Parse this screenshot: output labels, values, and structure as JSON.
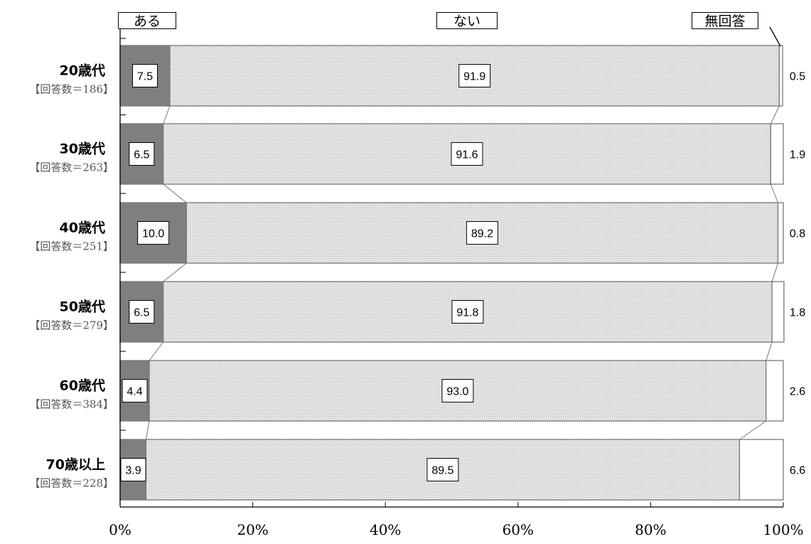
{
  "chart_data": {
    "type": "bar",
    "stacked": true,
    "orientation": "horizontal",
    "percent": true,
    "legend": [
      "ある",
      "ない",
      "無回答"
    ],
    "legend_placement": "top",
    "categories": [
      "20歳代",
      "30歳代",
      "40歳代",
      "50歳代",
      "60歳代",
      "70歳以上"
    ],
    "respondents": [
      "【回答数＝186】",
      "【回答数＝263】",
      "【回答数＝251】",
      "【回答数＝279】",
      "【回答数＝384】",
      "【回答数＝228】"
    ],
    "series": [
      {
        "name": "ある",
        "values": [
          7.5,
          6.5,
          10.0,
          6.5,
          4.4,
          3.9
        ]
      },
      {
        "name": "ない",
        "values": [
          91.9,
          91.6,
          89.2,
          91.8,
          93.0,
          89.5
        ]
      },
      {
        "name": "無回答",
        "values": [
          0.5,
          1.9,
          0.8,
          1.8,
          2.6,
          6.6
        ]
      }
    ],
    "labels": {
      "ある": [
        "7.5",
        "6.5",
        "10.0",
        "6.5",
        "4.4",
        "3.9"
      ],
      "ない": [
        "91.9",
        "91.6",
        "89.2",
        "91.8",
        "93.0",
        "89.5"
      ],
      "無回答": [
        "0.5",
        "1.9",
        "0.8",
        "1.8",
        "2.6",
        "6.6"
      ]
    },
    "xlim": [
      0,
      100
    ],
    "x_ticks": [
      "0%",
      "20%",
      "40%",
      "60%",
      "80%",
      "100%"
    ],
    "grid": false,
    "colors": {
      "ある": "#7f7f7f",
      "ない": "#e6e6e6",
      "無回答": "#ffffff"
    }
  }
}
